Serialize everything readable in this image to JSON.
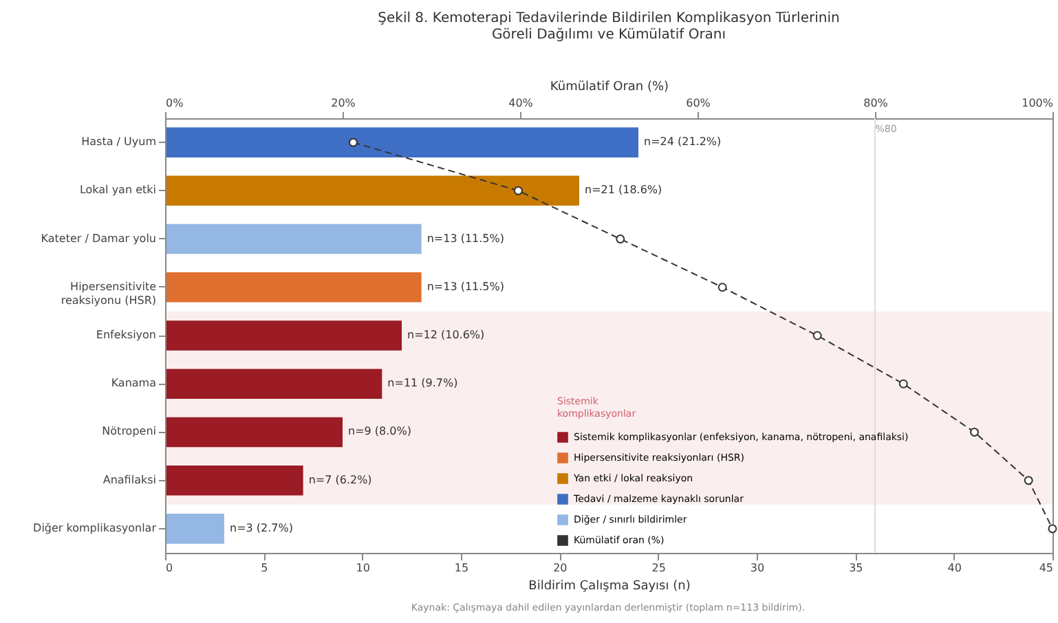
{
  "chart_data": {
    "type": "bar",
    "orientation": "horizontal",
    "title": [
      "Şekil 8. Kemoterapi Tedavilerinde Bildirilen Komplikasyon Türlerinin",
      "Göreli Dağılımı ve Kümülatif Oranı"
    ],
    "xlabel": "Bildirim Çalışma Sayısı (n)",
    "x2label": "Kümülatif Oran (%)",
    "categories": [
      "Hasta / Uyum",
      "Lokal yan etki",
      "Kateter / Damar yolu",
      "Hipersensitivite\nreaksiyonu (HSR)",
      "Enfeksiyon",
      "Kanama",
      "Nötropeni",
      "Anafilaksi",
      "Diğer komplikasyonlar"
    ],
    "series": [
      {
        "name": "Sistemik komplikasyonlar (enfeksiyon, kanama, nötropeni, anafilaksi)",
        "color": "#9b1c24",
        "values": [
          null,
          null,
          null,
          null,
          12,
          11,
          9,
          7,
          null
        ],
        "value_labels": [
          null,
          null,
          null,
          null,
          "n=12 (10.6%)",
          "n=11 (9.7%)",
          "n=9 (8.0%)",
          "n=7 (6.2%)",
          null
        ]
      },
      {
        "name": "Hipersensitivite reaksiyonları (HSR)",
        "color": "#e07030",
        "values": [
          null,
          null,
          null,
          13,
          null,
          null,
          null,
          null,
          null
        ],
        "value_labels": [
          null,
          null,
          null,
          "n=13 (11.5%)",
          null,
          null,
          null,
          null,
          null
        ]
      },
      {
        "name": "Yan etki / lokal reaksiyon",
        "color": "#c87a00",
        "values": [
          null,
          21,
          null,
          null,
          null,
          null,
          null,
          null,
          null
        ],
        "value_labels": [
          null,
          "n=21 (18.6%)",
          null,
          null,
          null,
          null,
          null,
          null,
          null
        ]
      },
      {
        "name": "Tedavi / malzeme kaynaklı sorunlar",
        "color": "#3f6fc4",
        "values": [
          24,
          null,
          null,
          null,
          null,
          null,
          null,
          null,
          null
        ],
        "value_labels": [
          "n=24 (21.2%)",
          null,
          null,
          null,
          null,
          null,
          null,
          null,
          null
        ]
      },
      {
        "name": "Diğer / sınırlı bildirimler",
        "color": "#94b8e3",
        "values": [
          null,
          null,
          13,
          null,
          null,
          null,
          null,
          null,
          3
        ],
        "value_labels": [
          null,
          null,
          "n=13 (11.5%)",
          null,
          null,
          null,
          null,
          null,
          "n=3 (2.7%)"
        ]
      },
      {
        "name": "Kümülatif oran (%)",
        "type": "line",
        "axis": "x2",
        "color": "#333333",
        "marker": "circle",
        "line_style": "dashed",
        "values": [
          21.2,
          39.8,
          51.3,
          62.8,
          73.5,
          83.2,
          91.2,
          97.3,
          100
        ]
      }
    ],
    "xlim": [
      0,
      45
    ],
    "xticks": [
      0,
      5,
      10,
      15,
      20,
      25,
      30,
      35,
      40,
      45
    ],
    "x2lim": [
      0,
      100
    ],
    "x2ticks": [
      {
        "value": 0,
        "label": "0%"
      },
      {
        "value": 20,
        "label": "20%"
      },
      {
        "value": 40,
        "label": "40%"
      },
      {
        "value": 60,
        "label": "60%"
      },
      {
        "value": 80,
        "label": "80%"
      },
      {
        "value": 100,
        "label": "100%"
      }
    ],
    "ref_lines": [
      {
        "axis": "x2",
        "value": 80,
        "label": "%80",
        "color": "#dddddd"
      }
    ],
    "bands": [
      {
        "axis": "y",
        "from": "Enfeksiyon",
        "to": "Anafilaksi",
        "label": "Sistemik\nkomplikasyonlar",
        "color": "#fbeeee"
      }
    ],
    "legend": "bottom right",
    "grid": false,
    "annotations": [
      "Kaynak: Çalışmaya dahil edilen yayınlardan derlenmiştir (toplam n=113 bildirim)."
    ]
  }
}
